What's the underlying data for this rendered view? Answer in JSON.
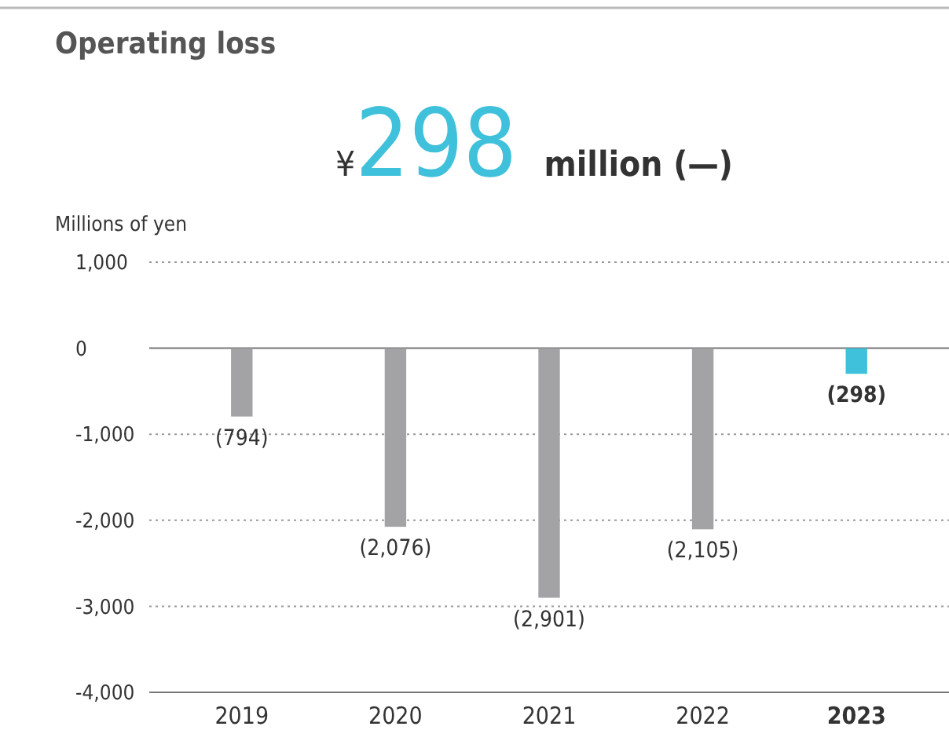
{
  "chart_data": {
    "type": "bar",
    "title": "Operating loss",
    "subtitle": "¥298 million (—)",
    "ylabel": "Millions of yen",
    "categories": [
      "2019",
      "2020",
      "2021",
      "2022",
      "2023"
    ],
    "values": [
      -794,
      -2076,
      -2901,
      -2105,
      -298
    ],
    "colors": [
      "#a3a3a6",
      "#a3a3a6",
      "#a3a3a6",
      "#a3a3a6",
      "#3fc1dc"
    ],
    "value_labels": [
      "(794)",
      "(2,076)",
      "(2,901)",
      "(2,105)",
      "(298)"
    ],
    "ylim": [
      -4000,
      1000
    ],
    "yticks": [
      {
        "value": 1000,
        "label": "1,000"
      },
      0,
      {
        "value": -1000,
        "label": "-1,000"
      },
      {
        "value": -2000,
        "label": "-2,000"
      },
      {
        "value": -3000,
        "label": "-3,000"
      },
      {
        "value": -4000,
        "label": "-4,000"
      }
    ],
    "grid": "y"
  }
}
